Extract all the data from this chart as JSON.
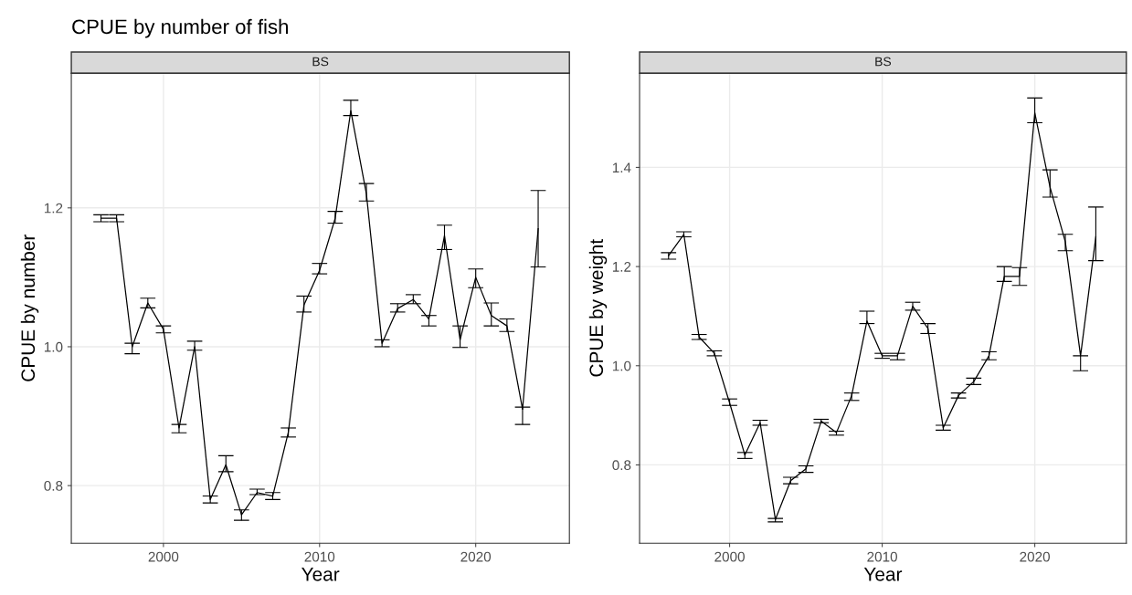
{
  "chart_data": [
    {
      "type": "line",
      "title": "CPUE by number of fish",
      "subtitle": "BS",
      "xlabel": "Year",
      "ylabel": "CPUE by number",
      "grid": true,
      "marker": "none",
      "line_style": "solid",
      "x": [
        1996,
        1997,
        1998,
        1999,
        2000,
        2001,
        2002,
        2003,
        2004,
        2005,
        2006,
        2007,
        2008,
        2009,
        2010,
        2011,
        2012,
        2013,
        2014,
        2015,
        2016,
        2017,
        2018,
        2019,
        2020,
        2021,
        2022,
        2023,
        2024
      ],
      "series": [
        {
          "color": "#000000",
          "values": [
            1.185,
            1.185,
            1.0,
            1.063,
            1.025,
            0.883,
            1.0,
            0.78,
            0.83,
            0.758,
            0.79,
            0.785,
            0.877,
            1.06,
            1.11,
            1.185,
            1.34,
            1.22,
            1.005,
            1.055,
            1.068,
            1.04,
            1.16,
            1.01,
            1.1,
            1.045,
            1.03,
            0.91,
            1.17
          ],
          "errors": [
            [
              1.18,
              1.19
            ],
            [
              1.18,
              1.19
            ],
            [
              0.99,
              1.005
            ],
            [
              1.056,
              1.07
            ],
            [
              1.02,
              1.03
            ],
            [
              0.876,
              0.888
            ],
            [
              0.995,
              1.008
            ],
            [
              0.775,
              0.785
            ],
            [
              0.82,
              0.843
            ],
            [
              0.75,
              0.765
            ],
            [
              0.787,
              0.795
            ],
            [
              0.78,
              0.79
            ],
            [
              0.87,
              0.883
            ],
            [
              1.05,
              1.073
            ],
            [
              1.105,
              1.12
            ],
            [
              1.178,
              1.195
            ],
            [
              1.333,
              1.355
            ],
            [
              1.21,
              1.235
            ],
            [
              1.0,
              1.01
            ],
            [
              1.05,
              1.062
            ],
            [
              1.062,
              1.075
            ],
            [
              1.03,
              1.045
            ],
            [
              1.14,
              1.175
            ],
            [
              0.999,
              1.03
            ],
            [
              1.085,
              1.112
            ],
            [
              1.03,
              1.063
            ],
            [
              1.022,
              1.04
            ],
            [
              0.888,
              0.913
            ],
            [
              1.115,
              1.225
            ]
          ]
        }
      ],
      "xlim": [
        1994.1,
        2026.0
      ],
      "ylim": [
        0.717,
        1.394
      ],
      "xticks": [
        2000,
        2010,
        2020
      ],
      "yticks": [
        {
          "value": 0.8,
          "label": "0.8"
        },
        {
          "value": 1.0,
          "label": "1.0"
        },
        {
          "value": 1.2,
          "label": "1.2"
        }
      ]
    },
    {
      "type": "line",
      "subtitle": "BS",
      "xlabel": "Year",
      "ylabel": "CPUE by weight",
      "grid": true,
      "marker": "none",
      "line_style": "solid",
      "x": [
        1996,
        1997,
        1998,
        1999,
        2000,
        2001,
        2002,
        2003,
        2004,
        2005,
        2006,
        2007,
        2008,
        2009,
        2010,
        2011,
        2012,
        2013,
        2014,
        2015,
        2016,
        2017,
        2018,
        2019,
        2020,
        2021,
        2022,
        2023,
        2024
      ],
      "series": [
        {
          "color": "#000000",
          "values": [
            1.222,
            1.265,
            1.058,
            1.025,
            0.925,
            0.82,
            0.885,
            0.69,
            0.768,
            0.792,
            0.888,
            0.865,
            0.94,
            1.09,
            1.02,
            1.02,
            1.12,
            1.075,
            0.875,
            0.94,
            0.968,
            1.02,
            1.18,
            1.18,
            1.51,
            1.36,
            1.25,
            1.02,
            1.26
          ],
          "errors": [
            [
              1.215,
              1.228
            ],
            [
              1.26,
              1.27
            ],
            [
              1.053,
              1.063
            ],
            [
              1.02,
              1.03
            ],
            [
              0.92,
              0.933
            ],
            [
              0.813,
              0.825
            ],
            [
              0.88,
              0.89
            ],
            [
              0.685,
              0.692
            ],
            [
              0.762,
              0.775
            ],
            [
              0.785,
              0.798
            ],
            [
              0.885,
              0.892
            ],
            [
              0.86,
              0.868
            ],
            [
              0.93,
              0.945
            ],
            [
              1.085,
              1.11
            ],
            [
              1.015,
              1.025
            ],
            [
              1.012,
              1.025
            ],
            [
              1.112,
              1.128
            ],
            [
              1.065,
              1.085
            ],
            [
              0.87,
              0.88
            ],
            [
              0.935,
              0.945
            ],
            [
              0.962,
              0.975
            ],
            [
              1.012,
              1.028
            ],
            [
              1.17,
              1.2
            ],
            [
              1.162,
              1.198
            ],
            [
              1.49,
              1.54
            ],
            [
              1.34,
              1.395
            ],
            [
              1.232,
              1.265
            ],
            [
              0.99,
              1.02
            ],
            [
              1.212,
              1.32
            ]
          ]
        }
      ],
      "xlim": [
        1994.1,
        2026.0
      ],
      "ylim": [
        0.642,
        1.59
      ],
      "xticks": [
        2000,
        2010,
        2020
      ],
      "yticks": [
        {
          "value": 0.8,
          "label": "0.8"
        },
        {
          "value": 1.0,
          "label": "1.0"
        },
        {
          "value": 1.2,
          "label": "1.2"
        },
        {
          "value": 1.4,
          "label": "1.4"
        }
      ]
    }
  ]
}
